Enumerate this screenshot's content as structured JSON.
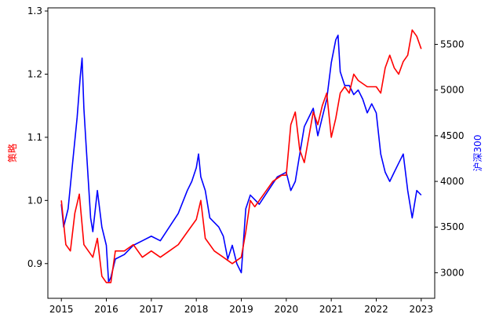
{
  "chart_data": {
    "type": "line",
    "title": "",
    "xlabel": "",
    "left_axis": {
      "label": "策略",
      "color": "#ff0000",
      "ylim": [
        0.845,
        1.305
      ],
      "ticks": [
        0.9,
        1.0,
        1.1,
        1.2,
        1.3
      ],
      "tick_labels": [
        "0.9",
        "1.0",
        "1.1",
        "1.2",
        "1.3"
      ]
    },
    "right_axis": {
      "label": "沪深300",
      "color": "#0000ff",
      "ylim": [
        2720,
        5900
      ],
      "ticks": [
        3000,
        3500,
        4000,
        4500,
        5000,
        5500
      ],
      "tick_labels": [
        "3000",
        "3500",
        "4000",
        "4500",
        "5000",
        "5500"
      ]
    },
    "x_axis": {
      "xlim": [
        2014.7,
        2023.3
      ],
      "ticks": [
        2015,
        2016,
        2017,
        2018,
        2019,
        2020,
        2021,
        2022,
        2023
      ],
      "tick_labels": [
        "2015",
        "2016",
        "2017",
        "2018",
        "2019",
        "2020",
        "2021",
        "2022",
        "2023"
      ]
    },
    "grid": false,
    "legend": "none",
    "series": [
      {
        "axis": "left",
        "color": "#ff0000",
        "x": [
          2015.0,
          2015.1,
          2015.2,
          2015.3,
          2015.4,
          2015.5,
          2015.6,
          2015.7,
          2015.8,
          2015.9,
          2016.0,
          2016.1,
          2016.2,
          2016.4,
          2016.6,
          2016.8,
          2017.0,
          2017.2,
          2017.4,
          2017.6,
          2017.8,
          2018.0,
          2018.1,
          2018.2,
          2018.4,
          2018.6,
          2018.8,
          2019.0,
          2019.1,
          2019.2,
          2019.3,
          2019.5,
          2019.7,
          2019.9,
          2020.0,
          2020.1,
          2020.2,
          2020.3,
          2020.4,
          2020.5,
          2020.6,
          2020.7,
          2020.8,
          2020.9,
          2021.0,
          2021.1,
          2021.2,
          2021.3,
          2021.4,
          2021.5,
          2021.6,
          2021.8,
          2022.0,
          2022.1,
          2022.2,
          2022.3,
          2022.4,
          2022.5,
          2022.6,
          2022.7,
          2022.8,
          2022.9,
          2023.0
        ],
        "y": [
          1.0,
          0.93,
          0.92,
          0.98,
          1.01,
          0.93,
          0.92,
          0.91,
          0.94,
          0.88,
          0.87,
          0.87,
          0.92,
          0.92,
          0.93,
          0.91,
          0.92,
          0.91,
          0.92,
          0.93,
          0.95,
          0.97,
          1.0,
          0.94,
          0.92,
          0.91,
          0.9,
          0.91,
          0.95,
          1.0,
          0.99,
          1.01,
          1.03,
          1.04,
          1.04,
          1.12,
          1.14,
          1.08,
          1.06,
          1.1,
          1.14,
          1.12,
          1.15,
          1.17,
          1.1,
          1.13,
          1.17,
          1.18,
          1.17,
          1.2,
          1.19,
          1.18,
          1.18,
          1.17,
          1.21,
          1.23,
          1.21,
          1.2,
          1.22,
          1.23,
          1.27,
          1.26,
          1.24
        ]
      },
      {
        "axis": "right",
        "color": "#0000ff",
        "x": [
          2015.0,
          2015.05,
          2015.15,
          2015.25,
          2015.35,
          2015.42,
          2015.46,
          2015.5,
          2015.55,
          2015.6,
          2015.65,
          2015.7,
          2015.8,
          2015.9,
          2016.0,
          2016.05,
          2016.1,
          2016.2,
          2016.4,
          2016.6,
          2016.8,
          2017.0,
          2017.2,
          2017.4,
          2017.6,
          2017.8,
          2017.9,
          2018.0,
          2018.05,
          2018.1,
          2018.2,
          2018.3,
          2018.5,
          2018.6,
          2018.7,
          2018.8,
          2018.9,
          2019.0,
          2019.1,
          2019.2,
          2019.3,
          2019.4,
          2019.6,
          2019.8,
          2020.0,
          2020.1,
          2020.2,
          2020.3,
          2020.4,
          2020.5,
          2020.6,
          2020.7,
          2020.8,
          2020.9,
          2021.0,
          2021.1,
          2021.15,
          2021.2,
          2021.3,
          2021.4,
          2021.5,
          2021.6,
          2021.7,
          2021.8,
          2021.9,
          2022.0,
          2022.1,
          2022.2,
          2022.3,
          2022.4,
          2022.5,
          2022.6,
          2022.7,
          2022.8,
          2022.9,
          2023.0
        ],
        "y": [
          3750,
          3500,
          3700,
          4200,
          4700,
          5150,
          5350,
          4800,
          4400,
          4000,
          3600,
          3450,
          3900,
          3500,
          3300,
          2900,
          2950,
          3150,
          3200,
          3300,
          3350,
          3400,
          3350,
          3500,
          3650,
          3900,
          4000,
          4150,
          4300,
          4050,
          3900,
          3600,
          3500,
          3400,
          3150,
          3300,
          3100,
          3000,
          3700,
          3850,
          3800,
          3750,
          3900,
          4050,
          4100,
          3900,
          4000,
          4300,
          4600,
          4700,
          4800,
          4500,
          4700,
          4900,
          5300,
          5550,
          5600,
          5200,
          5050,
          5050,
          4950,
          5000,
          4900,
          4750,
          4850,
          4750,
          4300,
          4100,
          4000,
          4100,
          4200,
          4300,
          3900,
          3600,
          3900,
          3850
        ]
      }
    ]
  }
}
